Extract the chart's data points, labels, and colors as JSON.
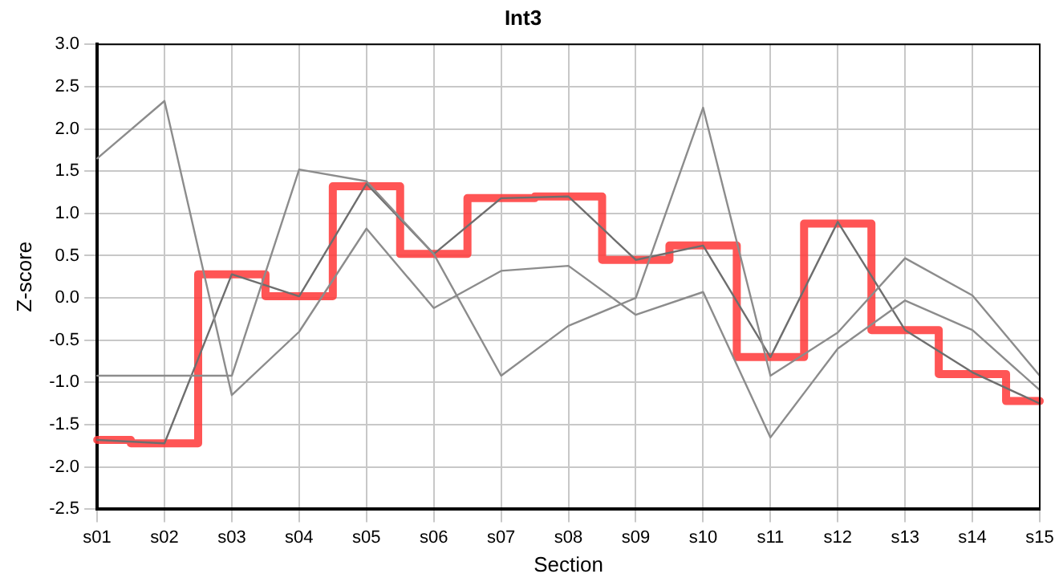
{
  "chart_data": {
    "type": "line",
    "title": "Int3",
    "xlabel": "Section",
    "ylabel": "Z-score",
    "categories": [
      "s01",
      "s02",
      "s03",
      "s04",
      "s05",
      "s06",
      "s07",
      "s08",
      "s09",
      "s10",
      "s11",
      "s12",
      "s13",
      "s14",
      "s15"
    ],
    "ylim": [
      -2.5,
      3.0
    ],
    "yticks": [
      {
        "value": -2.5,
        "label": "-2.5"
      },
      {
        "value": -2,
        "label": "-2.0"
      },
      {
        "value": -1.5,
        "label": "-1.5"
      },
      {
        "value": -1,
        "label": "-1.0"
      },
      {
        "value": -0.5,
        "label": "-0.5"
      },
      {
        "value": 0,
        "label": "0.0"
      },
      {
        "value": 0.5,
        "label": "0.5"
      },
      {
        "value": 1,
        "label": "1.0"
      },
      {
        "value": 1.5,
        "label": "1.5"
      },
      {
        "value": 2,
        "label": "2.0"
      },
      {
        "value": 2.5,
        "label": "2.5"
      },
      {
        "value": 3,
        "label": "3.0"
      }
    ],
    "grid": true,
    "legend": false,
    "marker": "none",
    "line_style": "solid",
    "series": [
      {
        "color": "#8c8c8c",
        "values": [
          1.65,
          2.33,
          -1.15,
          -0.4,
          0.82,
          -0.12,
          0.32,
          0.38,
          -0.2,
          0.07,
          -1.65,
          -0.6,
          -0.03,
          -0.38,
          -1.09
        ]
      },
      {
        "color": "#8c8c8c",
        "values": [
          -0.92,
          -0.92,
          -0.92,
          1.52,
          1.38,
          0.52,
          -0.92,
          -0.33,
          0.0,
          2.25,
          -0.92,
          -0.41,
          0.47,
          0.03,
          -0.92
        ]
      },
      {
        "color": "#6e6e6e",
        "values": [
          -1.68,
          -1.72,
          0.28,
          0.02,
          1.35,
          0.52,
          1.18,
          1.2,
          0.45,
          0.62,
          -0.7,
          0.9,
          -0.38,
          -0.88,
          -1.25
        ]
      },
      {
        "type": "step",
        "color": "#ff3b3b",
        "values": [
          -1.68,
          -1.72,
          0.28,
          0.02,
          1.32,
          0.52,
          1.18,
          1.2,
          0.45,
          0.62,
          -0.7,
          0.88,
          -0.38,
          -0.9,
          -1.22
        ]
      }
    ]
  }
}
